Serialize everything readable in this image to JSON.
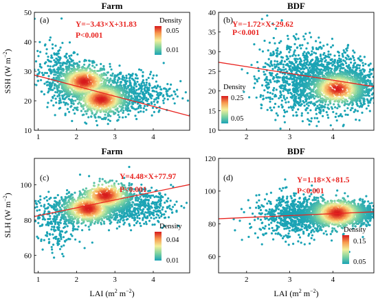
{
  "figure": {
    "col_titles": [
      "Farm",
      "BDF"
    ],
    "x_axis_label": "LAI (m",
    "x_axis_unit_tail": " m",
    "x_axis_close": ")",
    "y_label_ssh": "SSH (W m",
    "y_label_slh": "SLH (W m",
    "y_label_close": ")",
    "sup": "−2"
  },
  "chart_data": [
    {
      "type": "scatter",
      "panel": "(a)",
      "title": "Farm",
      "xlabel": "LAI (m2 m−2)",
      "ylabel": "SSH (W m−2)",
      "xlim": [
        0.9,
        4.95
      ],
      "ylim": [
        10,
        50
      ],
      "xticks": [
        1,
        2,
        3,
        4
      ],
      "yticks": [
        10,
        20,
        30,
        40,
        50
      ],
      "fit": {
        "equation": "Y=−3.43×X+31.83",
        "p": "P<0.001",
        "slope": -3.43,
        "intercept": 31.83
      },
      "colorbar": {
        "title": "Density",
        "ticks": [
          "0.05",
          "0.01"
        ]
      },
      "clusters": [
        {
          "x": 2.1,
          "y": 26,
          "sx": 0.38,
          "sy": 3.2,
          "n": 900
        },
        {
          "x": 2.7,
          "y": 20.5,
          "sx": 0.35,
          "sy": 2.8,
          "n": 700
        },
        {
          "x": 3.4,
          "y": 23,
          "sx": 0.55,
          "sy": 3.6,
          "n": 500
        },
        {
          "x": 1.5,
          "y": 30,
          "sx": 0.3,
          "sy": 5,
          "n": 220
        }
      ],
      "hotspots": [
        {
          "x": 2.2,
          "y": 26.5
        },
        {
          "x": 2.65,
          "y": 20.5
        }
      ]
    },
    {
      "type": "scatter",
      "panel": "(b)",
      "title": "BDF",
      "xlabel": "LAI (m2 m−2)",
      "ylabel": "",
      "xlim": [
        1.35,
        4.95
      ],
      "ylim": [
        10,
        40
      ],
      "xticks": [
        2,
        3,
        4
      ],
      "yticks": [
        10,
        15,
        20,
        25,
        30,
        35,
        40
      ],
      "fit": {
        "equation": "Y=−1.72×X+29.62",
        "p": "P<0.001",
        "slope": -1.72,
        "intercept": 29.62
      },
      "colorbar": {
        "title": "Density",
        "ticks": [
          "0.25",
          "0.05"
        ]
      },
      "clusters": [
        {
          "x": 3.9,
          "y": 22,
          "sx": 0.55,
          "sy": 3.5,
          "n": 1400
        },
        {
          "x": 3.1,
          "y": 24,
          "sx": 0.5,
          "sy": 5,
          "n": 500
        },
        {
          "x": 4.6,
          "y": 21,
          "sx": 0.2,
          "sy": 2.5,
          "n": 300
        }
      ],
      "hotspots": [
        {
          "x": 4.1,
          "y": 20.5
        }
      ]
    },
    {
      "type": "scatter",
      "panel": "(c)",
      "title": "",
      "xlabel": "LAI (m2 m−2)",
      "ylabel": "SLH (W m−2)",
      "xlim": [
        0.9,
        4.95
      ],
      "ylim": [
        50,
        115
      ],
      "xticks": [
        1,
        2,
        3,
        4
      ],
      "yticks": [
        60,
        80,
        100
      ],
      "fit": {
        "equation": "Y=4.48×X+77.97",
        "p": "P<0.001",
        "slope": 4.48,
        "intercept": 77.97
      },
      "colorbar": {
        "title": "Density",
        "ticks": [
          "0.04",
          "0.01"
        ]
      },
      "clusters": [
        {
          "x": 2.3,
          "y": 86,
          "sx": 0.45,
          "sy": 4,
          "n": 900
        },
        {
          "x": 2.8,
          "y": 93,
          "sx": 0.3,
          "sy": 4,
          "n": 500
        },
        {
          "x": 3.5,
          "y": 88,
          "sx": 0.5,
          "sy": 5,
          "n": 500
        },
        {
          "x": 1.5,
          "y": 78,
          "sx": 0.3,
          "sy": 8,
          "n": 220
        }
      ],
      "hotspots": [
        {
          "x": 2.3,
          "y": 86.5
        },
        {
          "x": 2.75,
          "y": 94
        }
      ]
    },
    {
      "type": "scatter",
      "panel": "(d)",
      "title": "",
      "xlabel": "LAI (m2 m−2)",
      "ylabel": "",
      "xlim": [
        1.35,
        4.95
      ],
      "ylim": [
        50,
        120
      ],
      "xticks": [
        2,
        3,
        4
      ],
      "yticks": [
        60,
        80,
        100,
        120
      ],
      "fit": {
        "equation": "Y=1.18×X+81.5",
        "p": "P<0.001",
        "slope": 1.18,
        "intercept": 81.5
      },
      "colorbar": {
        "title": "Density",
        "ticks": [
          "0.15",
          "0.05"
        ]
      },
      "clusters": [
        {
          "x": 3.9,
          "y": 86,
          "sx": 0.55,
          "sy": 4,
          "n": 1400
        },
        {
          "x": 3.1,
          "y": 84,
          "sx": 0.5,
          "sy": 7,
          "n": 500
        },
        {
          "x": 4.6,
          "y": 87,
          "sx": 0.2,
          "sy": 3,
          "n": 300
        }
      ],
      "hotspots": [
        {
          "x": 4.1,
          "y": 86.5
        }
      ]
    }
  ]
}
